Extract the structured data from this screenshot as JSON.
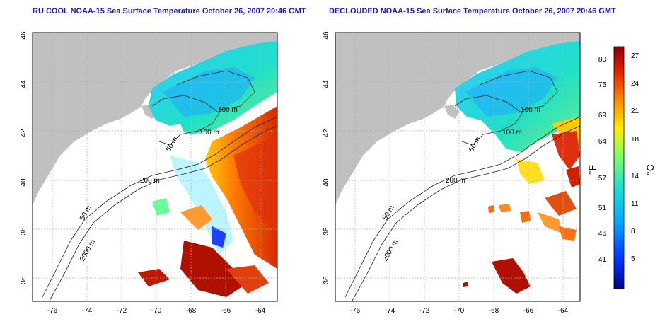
{
  "panels": [
    {
      "title": "RU COOL NOAA-15 Sea Surface Temperature October 26, 2007 20:46 GMT",
      "x_ticks": [
        "-76",
        "-74",
        "-72",
        "-70",
        "-68",
        "-66",
        "-64"
      ],
      "y_ticks": [
        "46",
        "44",
        "42",
        "40",
        "38",
        "36"
      ],
      "contour_labels": [
        "100 m",
        "100 m",
        "50 m",
        "200 m",
        "50 m",
        "2000 m"
      ]
    },
    {
      "title": "DECLOUDED NOAA-15 Sea Surface Temperature October 26, 2007 20:46 GMT",
      "x_ticks": [
        "-76",
        "-74",
        "-72",
        "-70",
        "-68",
        "-66",
        "-64"
      ],
      "y_ticks": [
        "46",
        "44",
        "42",
        "40",
        "38",
        "36"
      ],
      "contour_labels": [
        "100 m",
        "100 m",
        "50 m",
        "200 m",
        "50 m",
        "2000 m"
      ]
    }
  ],
  "colorbar": {
    "fahrenheit_ticks": [
      "80",
      "75",
      "69",
      "64",
      "57",
      "51",
      "46",
      "41"
    ],
    "celsius_ticks": [
      "27",
      "24",
      "21",
      "18",
      "14",
      "11",
      "8",
      "5"
    ],
    "left_unit": "°F",
    "right_unit": "°C",
    "colors": [
      "#00008f",
      "#0033ff",
      "#00aaff",
      "#20e0d0",
      "#80ff60",
      "#ffee00",
      "#ff8800",
      "#e02000",
      "#8b0000"
    ]
  }
}
